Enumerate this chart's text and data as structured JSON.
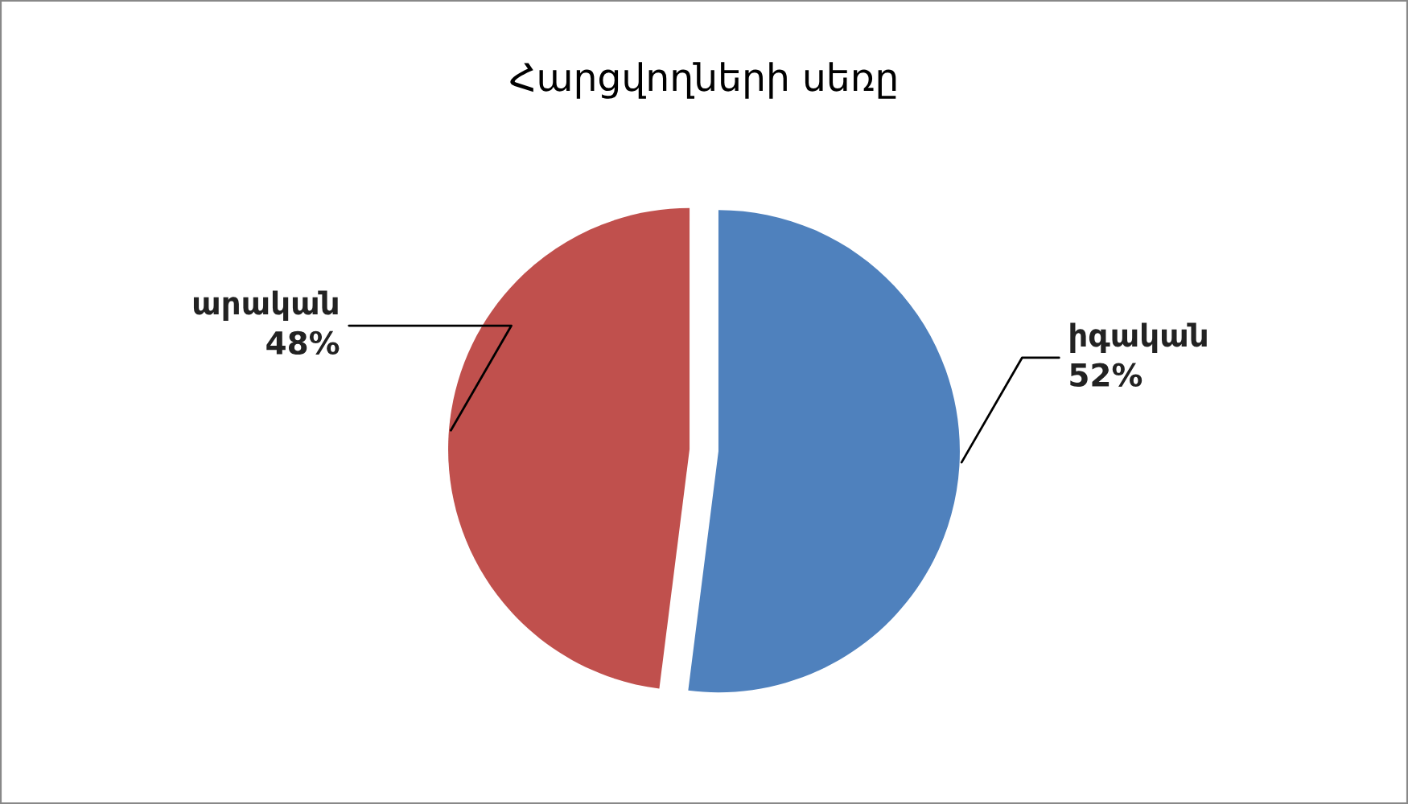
{
  "chart_data": {
    "type": "pie",
    "title": "Հարցվողների սեռը",
    "categories": [
      "իգական",
      "արական"
    ],
    "values": [
      52,
      48
    ],
    "colors": [
      "#4f81bd",
      "#c0504d"
    ],
    "value_labels": [
      "52%",
      "48%"
    ],
    "legend": false
  }
}
